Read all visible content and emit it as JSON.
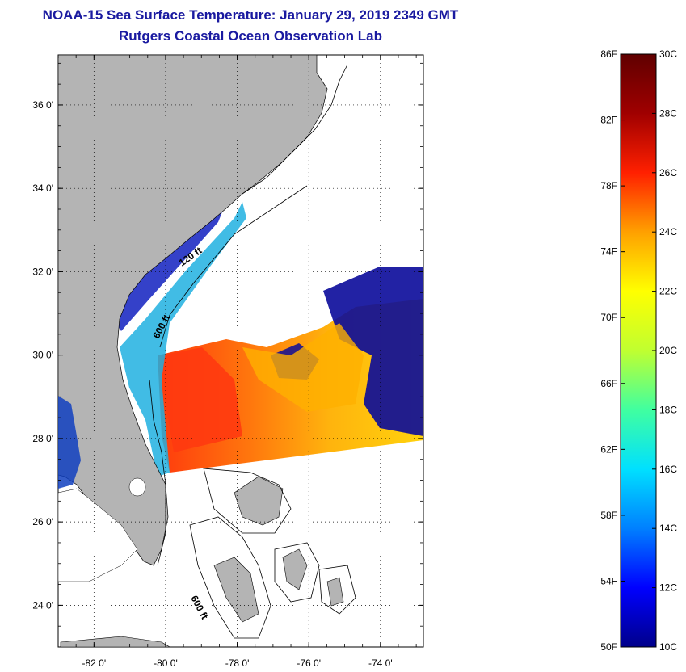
{
  "header": {
    "title": "NOAA-15 Sea Surface Temperature:  January 29, 2019 2349 GMT",
    "subtitle": "Rutgers Coastal Ocean Observation Lab"
  },
  "map": {
    "lat_labels": [
      "36 0'",
      "34 0'",
      "32 0'",
      "30 0'",
      "28 0'",
      "26 0'",
      "24 0'"
    ],
    "lat_values": [
      36,
      34,
      32,
      30,
      28,
      26,
      24
    ],
    "lon_labels": [
      "-82 0'",
      "-80 0'",
      "-78 0'",
      "-76 0'",
      "-74 0'"
    ],
    "lon_values": [
      -82,
      -80,
      -78,
      -76,
      -74
    ],
    "lat_range": [
      23,
      37.2
    ],
    "lon_range": [
      -83,
      -72.8
    ],
    "contours": [
      {
        "label": "120 ft",
        "anchor": [
          -78.8,
          32.4
        ]
      },
      {
        "label": "600 ft",
        "anchor": [
          -79.5,
          30.9
        ]
      },
      {
        "label": "600 ft",
        "anchor": [
          -79.2,
          23.8
        ]
      }
    ]
  },
  "colorbar": {
    "f_labels": [
      "86F",
      "82F",
      "78F",
      "74F",
      "70F",
      "66F",
      "62F",
      "58F",
      "54F",
      "50F"
    ],
    "f_values": [
      86,
      82,
      78,
      74,
      70,
      66,
      62,
      58,
      54,
      50
    ],
    "c_labels": [
      "30C",
      "28C",
      "26C",
      "24C",
      "22C",
      "20C",
      "18C",
      "16C",
      "14C",
      "12C",
      "10C"
    ],
    "c_values": [
      30,
      28,
      26,
      24,
      22,
      20,
      18,
      16,
      14,
      12,
      10
    ],
    "range_c": [
      10,
      30
    ],
    "stops": [
      "#00008a",
      "#0000ff",
      "#0080ff",
      "#00e0ff",
      "#40ffa0",
      "#c0ff30",
      "#ffff00",
      "#ffa000",
      "#ff2000",
      "#a00000",
      "#600000"
    ]
  },
  "colors": {
    "title": "#1a1aa0",
    "land": "#b4b4b4",
    "cloud": "#ffffff"
  }
}
